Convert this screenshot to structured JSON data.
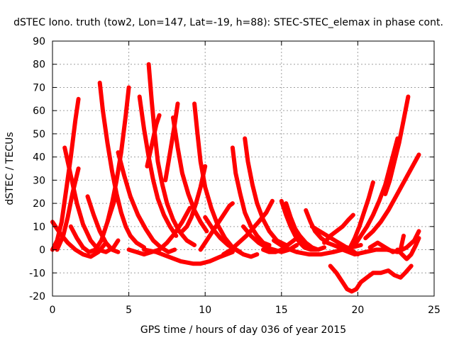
{
  "chart_data": {
    "type": "line",
    "title": "dSTEC Iono. truth (tow2, Lon=147, Lat=-19, h=88): STEC-STEC_elemax in phase cont.",
    "xlabel": "GPS time / hours of day 036 of year 2015",
    "ylabel": "dSTEC  / TECUs",
    "xlim": [
      0,
      25
    ],
    "ylim": [
      -20,
      90
    ],
    "xticks": [
      0,
      5,
      10,
      15,
      20,
      25
    ],
    "yticks": [
      -20,
      -10,
      0,
      10,
      20,
      30,
      40,
      50,
      60,
      70,
      80,
      90
    ],
    "grid": true,
    "marker": "+",
    "color": "#ff0000",
    "series": [
      {
        "x": [
          0.0,
          0.3,
          0.6,
          0.9,
          1.2,
          1.5,
          1.7
        ],
        "y": [
          0,
          4,
          12,
          26,
          40,
          56,
          65
        ]
      },
      {
        "x": [
          0.0,
          0.5,
          1.0,
          1.5,
          2.0,
          2.5,
          3.0,
          3.5
        ],
        "y": [
          12,
          7,
          3,
          0,
          -2,
          -3,
          -1,
          3
        ]
      },
      {
        "x": [
          0.8,
          1.2,
          1.6,
          2.0,
          2.5,
          3.0,
          3.5,
          4.0,
          4.3
        ],
        "y": [
          44,
          32,
          20,
          11,
          4,
          0,
          -1,
          1,
          4
        ]
      },
      {
        "x": [
          0.3,
          0.7,
          1.0,
          1.3,
          1.7
        ],
        "y": [
          0,
          6,
          14,
          24,
          35
        ]
      },
      {
        "x": [
          1.2,
          1.6,
          2.0,
          2.4,
          2.8,
          3.2,
          3.6,
          4.1
        ],
        "y": [
          10,
          5,
          1,
          -1,
          0,
          4,
          12,
          22
        ]
      },
      {
        "x": [
          2.3,
          2.7,
          3.1,
          3.5,
          3.9,
          4.3
        ],
        "y": [
          23,
          15,
          8,
          3,
          0,
          -1
        ]
      },
      {
        "x": [
          3.1,
          3.3,
          3.6,
          3.9,
          4.2,
          4.5,
          4.8,
          5.1,
          5.5,
          6.0
        ],
        "y": [
          72,
          60,
          46,
          34,
          24,
          16,
          10,
          6,
          3,
          1
        ]
      },
      {
        "x": [
          3.6,
          3.9,
          4.2,
          4.5,
          4.8,
          5.0
        ],
        "y": [
          12,
          20,
          30,
          42,
          58,
          70
        ]
      },
      {
        "x": [
          4.3,
          4.7,
          5.1,
          5.6,
          6.1,
          6.6,
          7.1,
          7.6,
          8.0
        ],
        "y": [
          42,
          32,
          23,
          15,
          9,
          4,
          1,
          -1,
          0
        ]
      },
      {
        "x": [
          5.0,
          5.5,
          6.0,
          6.5,
          7.0,
          7.5,
          8.0,
          8.5,
          9.0
        ],
        "y": [
          0,
          -1,
          -2,
          -1,
          0,
          3,
          7,
          12,
          18
        ]
      },
      {
        "x": [
          5.7,
          6.0,
          6.3,
          6.6,
          6.9,
          7.3,
          7.7,
          8.1
        ],
        "y": [
          66,
          52,
          40,
          30,
          22,
          15,
          10,
          6
        ]
      },
      {
        "x": [
          6.3,
          6.5,
          6.7,
          6.9,
          7.2,
          7.5,
          7.9,
          8.3,
          8.8,
          9.3
        ],
        "y": [
          80,
          64,
          50,
          38,
          28,
          20,
          13,
          8,
          4,
          2
        ]
      },
      {
        "x": [
          6.2,
          6.4,
          6.6,
          6.8,
          7.0
        ],
        "y": [
          36,
          42,
          48,
          54,
          58
        ]
      },
      {
        "x": [
          7.4,
          7.6,
          7.8,
          8.0,
          8.2
        ],
        "y": [
          30,
          38,
          46,
          54,
          63
        ]
      },
      {
        "x": [
          7.9,
          8.2,
          8.5,
          8.9,
          9.3,
          9.7,
          10.1
        ],
        "y": [
          57,
          44,
          33,
          24,
          17,
          12,
          8
        ]
      },
      {
        "x": [
          8.5,
          8.8,
          9.1,
          9.4,
          9.7,
          10.0
        ],
        "y": [
          8,
          10,
          14,
          20,
          27,
          36
        ]
      },
      {
        "x": [
          9.3,
          9.5,
          9.7,
          10.0,
          10.4,
          10.8,
          11.3,
          11.8,
          12.3
        ],
        "y": [
          63,
          50,
          38,
          27,
          18,
          11,
          5,
          1,
          -1
        ]
      },
      {
        "x": [
          6.0,
          6.8,
          7.6,
          8.4,
          9.2,
          9.7,
          10.3,
          11.0,
          11.8
        ],
        "y": [
          0,
          -1,
          -3,
          -5,
          -6,
          -6,
          -5,
          -3,
          -1
        ]
      },
      {
        "x": [
          9.7,
          10.0,
          10.4,
          10.8,
          11.2,
          11.6,
          11.8
        ],
        "y": [
          0,
          3,
          7,
          11,
          15,
          19,
          20
        ]
      },
      {
        "x": [
          10.0,
          10.5,
          11.0,
          11.5,
          12.0,
          12.5,
          13.0,
          13.4
        ],
        "y": [
          14,
          9,
          5,
          2,
          0,
          -2,
          -3,
          -2
        ]
      },
      {
        "x": [
          11.8,
          12.0,
          12.3,
          12.6,
          13.0,
          13.4,
          13.8,
          14.2
        ],
        "y": [
          44,
          33,
          24,
          16,
          10,
          6,
          3,
          2
        ]
      },
      {
        "x": [
          12.6,
          12.8,
          13.1,
          13.4,
          13.8,
          14.2,
          14.7,
          15.3
        ],
        "y": [
          48,
          38,
          28,
          20,
          13,
          8,
          4,
          2
        ]
      },
      {
        "x": [
          11.2,
          11.7,
          12.2,
          12.7,
          13.1,
          13.5,
          14.0,
          14.4
        ],
        "y": [
          -2,
          0,
          3,
          6,
          9,
          12,
          16,
          21
        ]
      },
      {
        "x": [
          12.5,
          13.0,
          13.5,
          14.0,
          14.5,
          15.0,
          15.5,
          16.0
        ],
        "y": [
          10,
          6,
          3,
          1,
          0,
          -1,
          0,
          2
        ]
      },
      {
        "x": [
          13.8,
          14.2,
          14.6,
          15.0,
          15.4,
          15.8,
          16.2
        ],
        "y": [
          0,
          -1,
          -1,
          0,
          2,
          4,
          6
        ]
      },
      {
        "x": [
          15.0,
          15.3,
          15.6,
          15.9,
          16.2,
          16.5,
          16.9,
          17.3
        ],
        "y": [
          21,
          15,
          10,
          6,
          3,
          1,
          0,
          0
        ]
      },
      {
        "x": [
          15.3,
          15.6,
          15.9,
          16.2,
          16.5,
          16.8,
          17.0
        ],
        "y": [
          20,
          14,
          9,
          5,
          3,
          1,
          0
        ]
      },
      {
        "x": [
          15.8,
          16.2,
          16.6,
          17.0,
          17.4,
          17.8
        ],
        "y": [
          10,
          6,
          3,
          1,
          0,
          1
        ]
      },
      {
        "x": [
          16.6,
          16.9,
          17.2,
          17.6,
          18.0,
          18.4,
          18.8,
          19.3
        ],
        "y": [
          17,
          12,
          8,
          5,
          3,
          2,
          1,
          1
        ]
      },
      {
        "x": [
          14.5,
          15.2,
          16.0,
          16.8,
          17.6,
          18.4,
          19.0,
          19.6,
          20.2
        ],
        "y": [
          4,
          1,
          -1,
          -2,
          -2,
          -1,
          0,
          1,
          2
        ]
      },
      {
        "x": [
          17.0,
          17.5,
          18.0,
          18.5,
          19.0,
          19.5,
          20.0
        ],
        "y": [
          10,
          8,
          6,
          4,
          2,
          0,
          -2
        ]
      },
      {
        "x": [
          17.8,
          18.2,
          18.6,
          19.0,
          19.4,
          19.7
        ],
        "y": [
          3,
          6,
          8,
          10,
          13,
          15
        ]
      },
      {
        "x": [
          18.2,
          18.6,
          19.0,
          19.3,
          19.6,
          19.9,
          20.2,
          20.6,
          21.0,
          21.5,
          22.0,
          22.4,
          22.8,
          23.1,
          23.5
        ],
        "y": [
          -7,
          -10,
          -14,
          -17,
          -18,
          -17,
          -14,
          -12,
          -10,
          -10,
          -9,
          -11,
          -12,
          -10,
          -7
        ]
      },
      {
        "x": [
          19.5,
          19.8,
          20.1,
          20.4,
          20.7,
          21.0
        ],
        "y": [
          1,
          5,
          10,
          16,
          22,
          29
        ]
      },
      {
        "x": [
          19.8,
          20.2,
          20.6,
          21.0,
          21.4,
          21.8,
          22.2,
          22.6
        ],
        "y": [
          2,
          6,
          10,
          15,
          21,
          28,
          38,
          48
        ]
      },
      {
        "x": [
          20.5,
          21.0,
          21.5,
          22.0,
          22.5,
          23.0,
          23.5,
          24.0
        ],
        "y": [
          5,
          8,
          12,
          17,
          23,
          29,
          35,
          41
        ]
      },
      {
        "x": [
          21.8,
          22.1,
          22.4,
          22.7,
          23.0,
          23.3
        ],
        "y": [
          24,
          30,
          38,
          46,
          56,
          66
        ]
      },
      {
        "x": [
          19.0,
          19.8,
          20.5,
          21.2,
          21.9,
          22.6,
          23.2,
          23.7,
          24.0
        ],
        "y": [
          0,
          -2,
          -1,
          0,
          0,
          -1,
          1,
          4,
          8
        ]
      },
      {
        "x": [
          20.8,
          21.3,
          21.8,
          22.3,
          22.8,
          23.0
        ],
        "y": [
          1,
          3,
          1,
          -1,
          0,
          6
        ]
      },
      {
        "x": [
          22.6,
          22.9,
          23.2,
          23.5,
          23.8,
          24.0
        ],
        "y": [
          0,
          -2,
          -4,
          -2,
          2,
          5
        ]
      }
    ]
  }
}
